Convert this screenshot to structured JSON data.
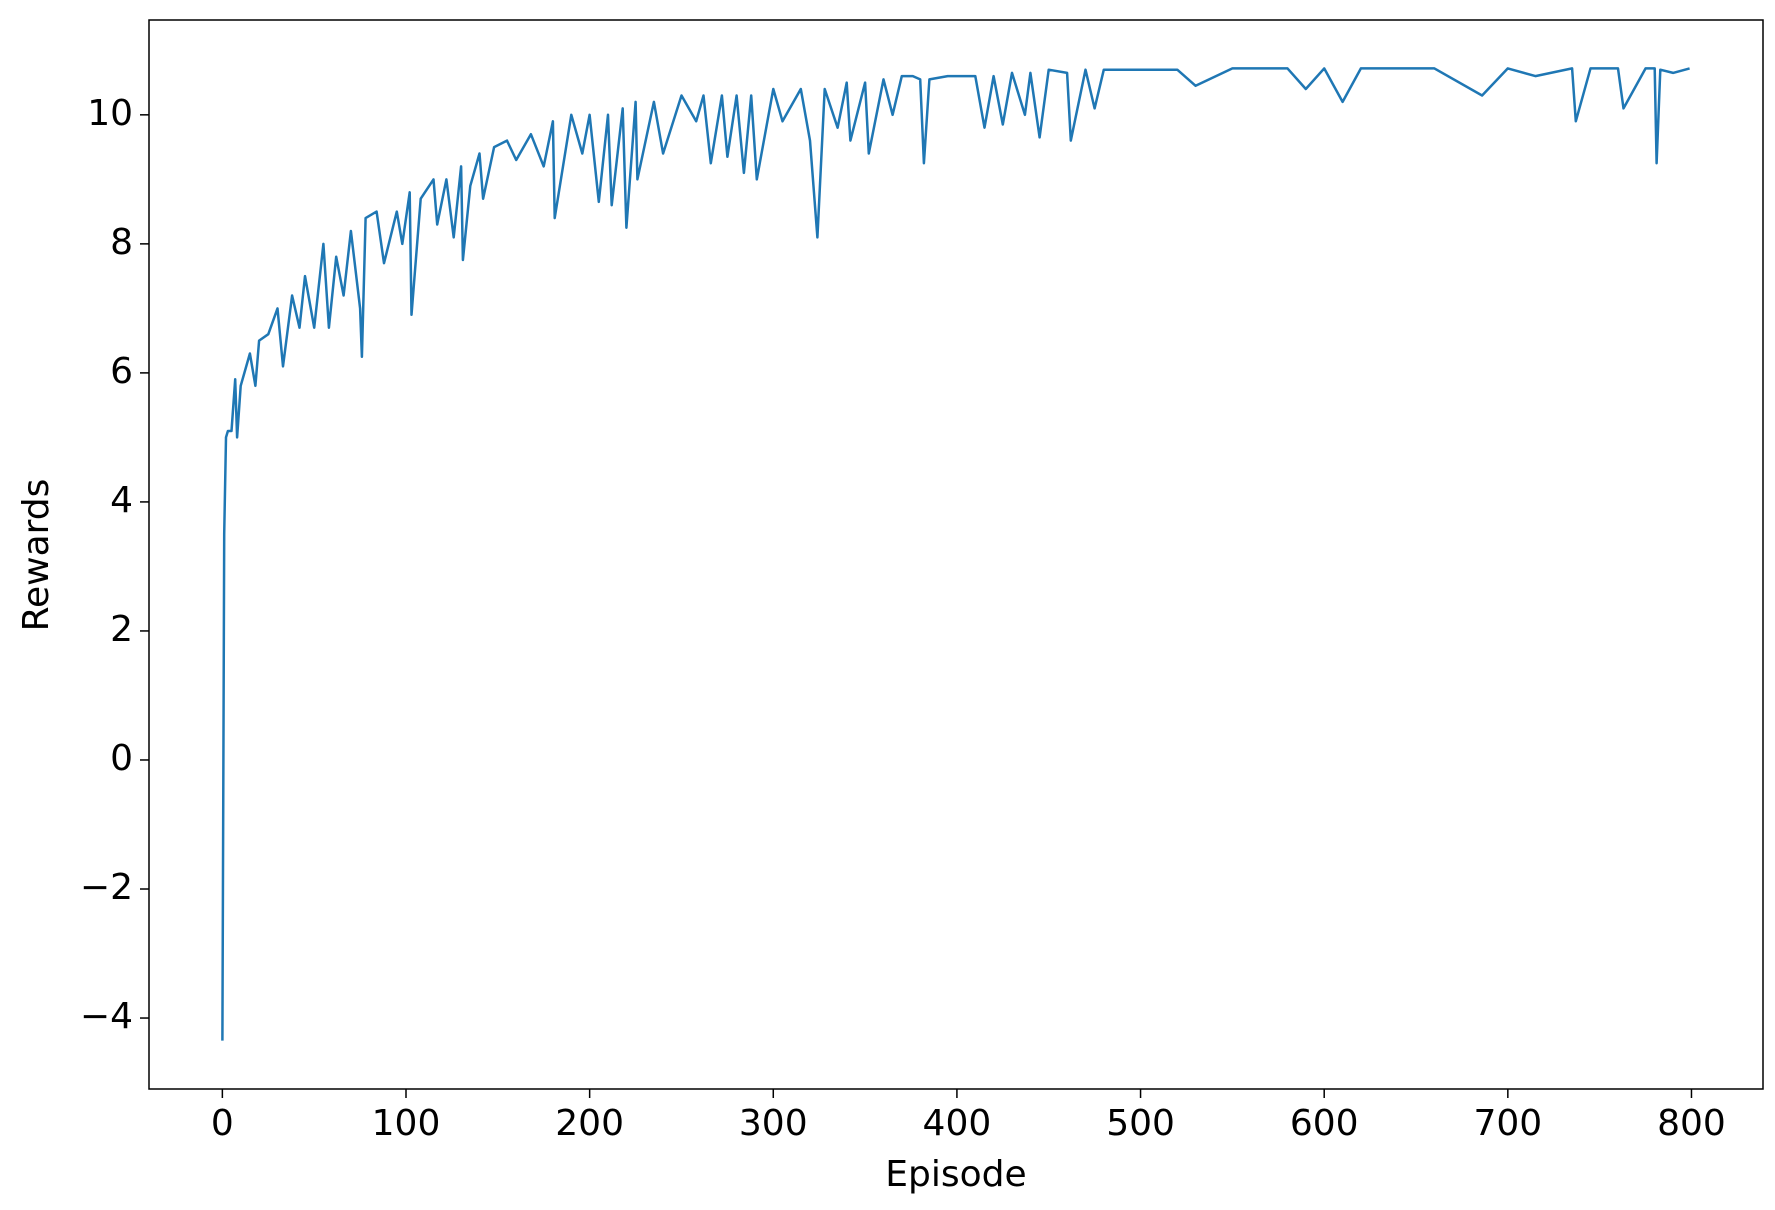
{
  "chart_data": {
    "type": "line",
    "xlabel": "Episode",
    "ylabel": "Rewards",
    "xlim": [
      -39.95,
      838.95
    ],
    "ylim": [
      -5.1,
      11.47
    ],
    "xticks": [
      0,
      100,
      200,
      300,
      400,
      500,
      600,
      700,
      800
    ],
    "yticks": [
      {
        "value": -4,
        "label": "−4"
      },
      {
        "value": -2,
        "label": "−2"
      },
      0,
      2,
      4,
      6,
      8,
      10
    ],
    "grid": false,
    "series": [
      {
        "color": "#1f77b4",
        "x": [
          0,
          1,
          2,
          3,
          5,
          7,
          8,
          10,
          15,
          18,
          20,
          25,
          30,
          33,
          38,
          42,
          45,
          50,
          55,
          58,
          62,
          66,
          70,
          75,
          76,
          78,
          84,
          88,
          95,
          98,
          102,
          103,
          108,
          115,
          117,
          122,
          126,
          130,
          131,
          135,
          140,
          142,
          148,
          155,
          160,
          168,
          175,
          180,
          181,
          190,
          196,
          200,
          205,
          210,
          212,
          218,
          220,
          225,
          226,
          235,
          240,
          250,
          258,
          262,
          266,
          272,
          275,
          280,
          284,
          288,
          291,
          300,
          305,
          315,
          320,
          324,
          328,
          335,
          340,
          342,
          350,
          352,
          360,
          365,
          370,
          376,
          380,
          382,
          385,
          395,
          410,
          415,
          420,
          425,
          430,
          437,
          440,
          445,
          450,
          460,
          462,
          470,
          475,
          480,
          500,
          520,
          530,
          550,
          580,
          590,
          600,
          610,
          620,
          640,
          660,
          686,
          700,
          715,
          735,
          737,
          745,
          760,
          763,
          775,
          780,
          781,
          783,
          790,
          799
        ],
        "values": [
          -4.35,
          3.5,
          5.0,
          5.1,
          5.1,
          5.9,
          5.0,
          5.8,
          6.3,
          5.8,
          6.5,
          6.6,
          7.0,
          6.1,
          7.2,
          6.7,
          7.5,
          6.7,
          8.0,
          6.7,
          7.8,
          7.2,
          8.2,
          7.0,
          6.25,
          8.4,
          8.5,
          7.7,
          8.5,
          8.0,
          8.8,
          6.9,
          8.7,
          9.0,
          8.3,
          9.0,
          8.1,
          9.2,
          7.75,
          8.9,
          9.4,
          8.7,
          9.5,
          9.6,
          9.3,
          9.7,
          9.2,
          9.9,
          8.4,
          10.0,
          9.4,
          10.0,
          8.65,
          10.0,
          8.6,
          10.1,
          8.25,
          10.2,
          9.0,
          10.2,
          9.4,
          10.3,
          9.9,
          10.3,
          9.25,
          10.3,
          9.35,
          10.3,
          9.1,
          10.3,
          9.0,
          10.4,
          9.9,
          10.4,
          9.6,
          8.1,
          10.4,
          9.8,
          10.5,
          9.6,
          10.5,
          9.4,
          10.55,
          10.0,
          10.6,
          10.6,
          10.55,
          9.25,
          10.55,
          10.6,
          10.6,
          9.8,
          10.6,
          9.85,
          10.65,
          10.0,
          10.65,
          9.65,
          10.7,
          10.65,
          9.6,
          10.7,
          10.1,
          10.7,
          10.7,
          10.7,
          10.45,
          10.72,
          10.72,
          10.4,
          10.72,
          10.2,
          10.72,
          10.72,
          10.72,
          10.3,
          10.72,
          10.6,
          10.72,
          9.9,
          10.72,
          10.72,
          10.1,
          10.72,
          10.72,
          9.25,
          10.7,
          10.65,
          10.72
        ]
      }
    ]
  }
}
